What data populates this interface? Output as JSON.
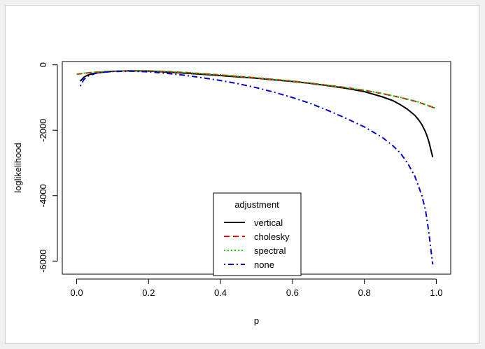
{
  "chart_data": {
    "type": "line",
    "title": "",
    "xlabel": "p",
    "ylabel": "loglikelihood",
    "xlim": [
      -0.04,
      1.04
    ],
    "ylim": [
      -6400,
      100
    ],
    "x_ticks": [
      0.0,
      0.2,
      0.4,
      0.6,
      0.8,
      1.0
    ],
    "x_tick_labels": [
      "0.0",
      "0.2",
      "0.4",
      "0.6",
      "0.8",
      "1.0"
    ],
    "y_ticks": [
      -6000,
      -4000,
      -2000,
      0
    ],
    "y_tick_labels": [
      "-6000",
      "-4000",
      "-2000",
      "0"
    ],
    "grid": false,
    "legend": {
      "title": "adjustment",
      "placement": "bottom-center"
    },
    "series": [
      {
        "name": "vertical",
        "color": "#000000",
        "dash": "solid",
        "x": [
          0.01,
          0.02,
          0.03,
          0.05,
          0.08,
          0.1,
          0.12,
          0.15,
          0.2,
          0.25,
          0.3,
          0.35,
          0.4,
          0.45,
          0.5,
          0.55,
          0.6,
          0.65,
          0.7,
          0.75,
          0.8,
          0.85,
          0.88,
          0.9,
          0.92,
          0.94,
          0.95,
          0.96,
          0.97,
          0.975,
          0.98,
          0.985,
          0.99
        ],
        "y": [
          -500,
          -380,
          -320,
          -250,
          -220,
          -200,
          -190,
          -185,
          -190,
          -220,
          -255,
          -290,
          -330,
          -370,
          -410,
          -460,
          -510,
          -570,
          -640,
          -720,
          -820,
          -980,
          -1100,
          -1220,
          -1360,
          -1540,
          -1670,
          -1830,
          -2050,
          -2200,
          -2380,
          -2600,
          -2820
        ]
      },
      {
        "name": "cholesky",
        "color": "#ff0000",
        "dash": "long-dash",
        "x": [
          0.0,
          0.02,
          0.05,
          0.08,
          0.1,
          0.15,
          0.2,
          0.25,
          0.3,
          0.35,
          0.4,
          0.45,
          0.5,
          0.55,
          0.6,
          0.65,
          0.7,
          0.75,
          0.8,
          0.85,
          0.9,
          0.95,
          1.0
        ],
        "y": [
          -290,
          -260,
          -230,
          -210,
          -200,
          -180,
          -185,
          -205,
          -235,
          -270,
          -310,
          -355,
          -400,
          -450,
          -500,
          -560,
          -630,
          -700,
          -780,
          -880,
          -1000,
          -1140,
          -1340
        ]
      },
      {
        "name": "spectral",
        "color": "#00cc00",
        "dash": "dotted",
        "x": [
          0.0,
          0.02,
          0.05,
          0.08,
          0.1,
          0.15,
          0.2,
          0.25,
          0.3,
          0.35,
          0.4,
          0.45,
          0.5,
          0.55,
          0.6,
          0.65,
          0.7,
          0.75,
          0.8,
          0.85,
          0.9,
          0.95,
          1.0
        ],
        "y": [
          -285,
          -255,
          -225,
          -205,
          -195,
          -178,
          -182,
          -202,
          -232,
          -267,
          -307,
          -352,
          -397,
          -447,
          -497,
          -557,
          -627,
          -697,
          -777,
          -877,
          -997,
          -1137,
          -1335
        ]
      },
      {
        "name": "none",
        "color": "#0000cc",
        "dash": "dot-dash",
        "x": [
          0.01,
          0.02,
          0.03,
          0.05,
          0.07,
          0.1,
          0.15,
          0.2,
          0.25,
          0.3,
          0.35,
          0.4,
          0.45,
          0.5,
          0.55,
          0.6,
          0.65,
          0.7,
          0.75,
          0.8,
          0.85,
          0.88,
          0.9,
          0.92,
          0.94,
          0.95,
          0.96,
          0.97,
          0.975,
          0.98,
          0.985,
          0.99
        ],
        "y": [
          -650,
          -450,
          -350,
          -270,
          -230,
          -205,
          -195,
          -215,
          -260,
          -320,
          -395,
          -480,
          -580,
          -700,
          -840,
          -1000,
          -1180,
          -1400,
          -1640,
          -1900,
          -2220,
          -2480,
          -2700,
          -3000,
          -3400,
          -3700,
          -4000,
          -4450,
          -4800,
          -5200,
          -5650,
          -6100
        ]
      }
    ]
  }
}
